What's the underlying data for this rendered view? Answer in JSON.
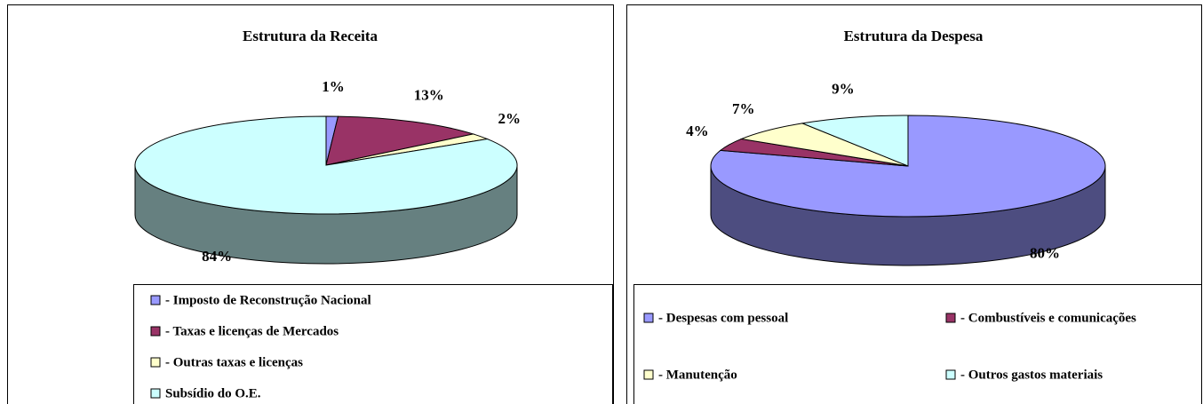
{
  "chart_data": [
    {
      "type": "pie3d",
      "title": "Estrutura da Receita",
      "categories": [
        "- Imposto de Reconstrução Nacional",
        "- Taxas e licenças de Mercados",
        "- Outras taxas e licenças",
        "Subsídio do O.E."
      ],
      "values": [
        1,
        13,
        2,
        84
      ],
      "value_labels": [
        "1%",
        "13%",
        "2%",
        "84%"
      ],
      "colors": [
        "#9999ff",
        "#993366",
        "#ffffcc",
        "#ccffff"
      ]
    },
    {
      "type": "pie3d",
      "title": "Estrutura da Despesa",
      "categories": [
        "- Despesas com pessoal",
        "- Combustíveis e comunicações",
        "- Manutenção",
        "- Outros gastos materiais"
      ],
      "values": [
        80,
        4,
        7,
        9
      ],
      "value_labels": [
        "80%",
        "4%",
        "7%",
        "9%"
      ],
      "colors": [
        "#9999ff",
        "#993366",
        "#ffffcc",
        "#ccffff"
      ]
    }
  ]
}
